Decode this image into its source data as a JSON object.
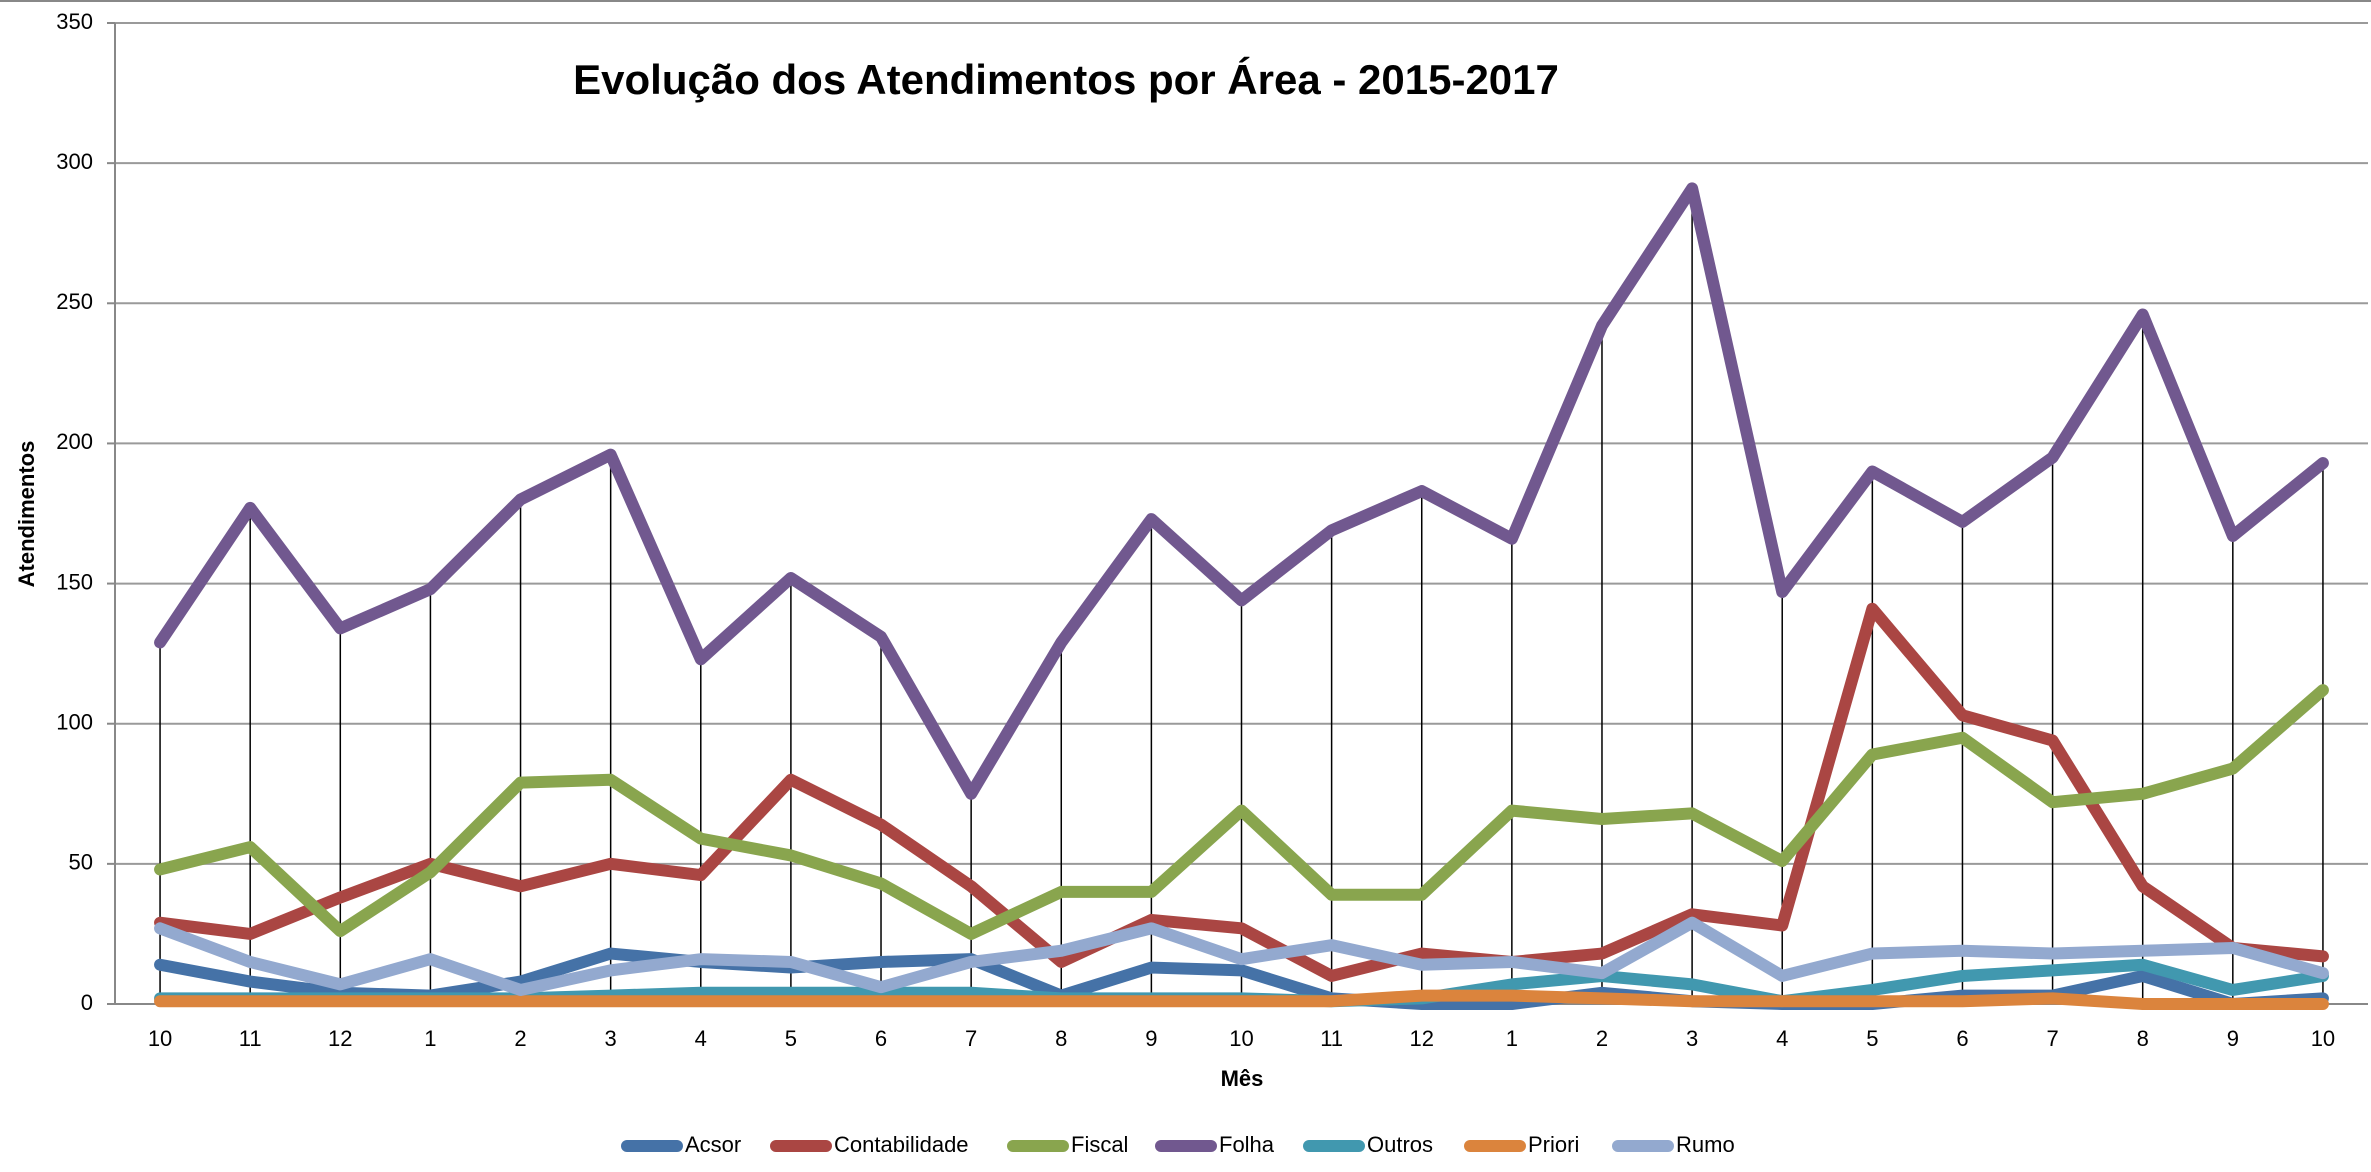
{
  "chart_data": {
    "type": "line",
    "title": "Evolução dos Atendimentos por Área - 2015-2017",
    "x_label": "Mês",
    "y_label": "Atendimentos",
    "categories": [
      "10",
      "11",
      "12",
      "1",
      "2",
      "3",
      "4",
      "5",
      "6",
      "7",
      "8",
      "9",
      "10",
      "11",
      "12",
      "1",
      "2",
      "3",
      "4",
      "5",
      "6",
      "7",
      "8",
      "9",
      "10"
    ],
    "series": [
      {
        "name": "Acsor",
        "color": "#4572a7",
        "values": [
          14,
          8,
          4,
          3,
          8,
          18,
          15,
          13,
          15,
          16,
          3,
          13,
          12,
          2,
          0,
          0,
          4,
          1,
          0,
          0,
          3,
          3,
          10,
          0,
          2
        ]
      },
      {
        "name": "Contabilidade",
        "color": "#aa4643",
        "values": [
          29,
          25,
          38,
          50,
          42,
          50,
          46,
          80,
          64,
          42,
          15,
          30,
          27,
          10,
          18,
          15,
          18,
          32,
          28,
          141,
          103,
          94,
          42,
          20,
          17
        ]
      },
      {
        "name": "Fiscal",
        "color": "#89a54e",
        "values": [
          48,
          56,
          26,
          47,
          79,
          80,
          59,
          53,
          43,
          25,
          40,
          40,
          69,
          39,
          39,
          69,
          66,
          68,
          51,
          89,
          95,
          72,
          75,
          84,
          112
        ]
      },
      {
        "name": "Folha",
        "color": "#71588f",
        "values": [
          129,
          177,
          134,
          148,
          180,
          196,
          123,
          152,
          131,
          75,
          129,
          173,
          144,
          169,
          183,
          166,
          242,
          291,
          147,
          190,
          172,
          195,
          246,
          167,
          193
        ]
      },
      {
        "name": "Outros",
        "color": "#4198af",
        "values": [
          2,
          2,
          2,
          2,
          2,
          3,
          4,
          4,
          4,
          4,
          2,
          2,
          2,
          1,
          2,
          7,
          10,
          7,
          1,
          5,
          10,
          12,
          14,
          5,
          10
        ]
      },
      {
        "name": "Priori",
        "color": "#db843d",
        "values": [
          1,
          1,
          1,
          1,
          1,
          1,
          1,
          1,
          1,
          1,
          1,
          1,
          1,
          1,
          3,
          3,
          2,
          1,
          1,
          1,
          1,
          2,
          0,
          0,
          0
        ]
      },
      {
        "name": "Rumo",
        "color": "#93a9cf",
        "values": [
          27,
          15,
          7,
          16,
          5,
          12,
          16,
          15,
          6,
          15,
          19,
          27,
          16,
          21,
          14,
          15,
          11,
          29,
          10,
          18,
          19,
          18,
          19,
          20,
          11
        ]
      }
    ],
    "ylim": [
      0,
      350
    ],
    "yticks": [
      0,
      50,
      100,
      150,
      200,
      250,
      300,
      350
    ],
    "grid": true,
    "legend": "bottom"
  }
}
